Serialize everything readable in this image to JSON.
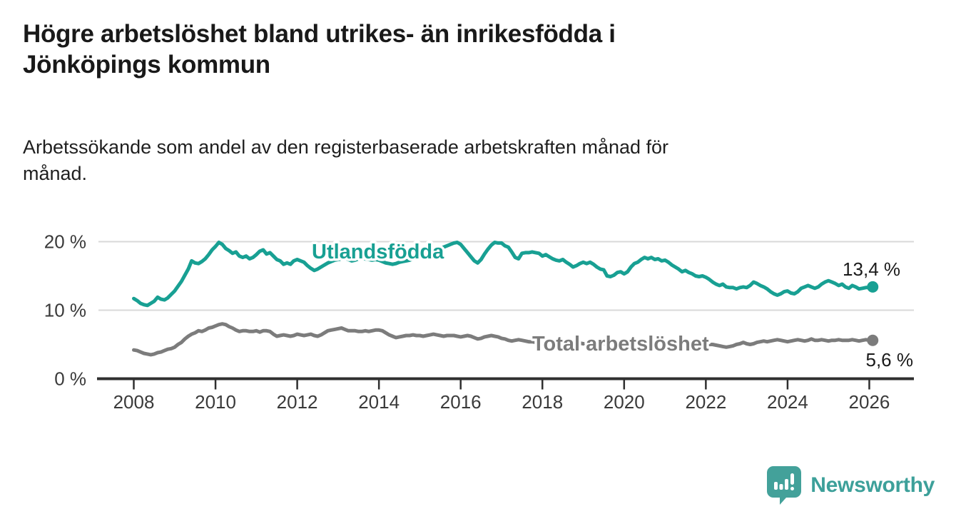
{
  "title": {
    "lines": [
      "Högre arbetslöshet bland utrikes- än inrikesfödda i",
      "Jönköpings kommun"
    ]
  },
  "subtitle": {
    "lines": [
      "Arbetssökande som andel av den registerbaserade arbetskraften månad för",
      "månad."
    ]
  },
  "chart_data": {
    "type": "line",
    "x_start": {
      "year": 2008,
      "month": 1
    },
    "x_end": {
      "year": 2026,
      "month": 2
    },
    "x_ticks": [
      2008,
      2010,
      2012,
      2014,
      2016,
      2018,
      2020,
      2022,
      2024,
      2026
    ],
    "x_tick_labels": [
      "2008",
      "2010",
      "2012",
      "2014",
      "2016",
      "2018",
      "2020",
      "2022",
      "2024",
      "2026"
    ],
    "y_ticks": [
      {
        "value": 0,
        "label": "0 %"
      },
      {
        "value": 10,
        "label": "10 %"
      },
      {
        "value": 20,
        "label": "20 %"
      }
    ],
    "ylim": [
      0,
      22
    ],
    "grid": "horizontal",
    "series": [
      {
        "name": "Utlandsfödda",
        "color": "#18a093",
        "end_value": 13.4,
        "end_label": "13,4 %",
        "values": [
          11.7,
          11.4,
          11.0,
          10.8,
          10.7,
          11.0,
          11.3,
          11.9,
          11.6,
          11.5,
          11.8,
          12.3,
          12.8,
          13.5,
          14.2,
          15.1,
          16.0,
          17.2,
          16.9,
          16.8,
          17.1,
          17.5,
          18.1,
          18.8,
          19.3,
          19.9,
          19.6,
          19.0,
          18.7,
          18.3,
          18.5,
          17.9,
          17.7,
          17.9,
          17.5,
          17.7,
          18.1,
          18.6,
          18.8,
          18.2,
          18.4,
          17.9,
          17.4,
          17.2,
          16.7,
          16.9,
          16.7,
          17.2,
          17.4,
          17.2,
          17.0,
          16.5,
          16.1,
          15.8,
          16.0,
          16.3,
          16.6,
          16.9,
          17.1,
          17.3,
          17.4,
          17.5,
          17.6,
          17.4,
          17.2,
          17.3,
          17.5,
          17.6,
          17.5,
          17.4,
          17.3,
          17.4,
          17.3,
          17.1,
          16.9,
          16.8,
          16.7,
          16.8,
          17.0,
          17.1,
          17.2,
          17.3,
          17.5,
          17.7,
          17.9,
          18.1,
          18.3,
          18.5,
          18.6,
          18.8,
          19.0,
          19.2,
          19.4,
          19.6,
          19.8,
          19.9,
          19.6,
          19.0,
          18.4,
          17.8,
          17.2,
          16.9,
          17.4,
          18.2,
          18.9,
          19.5,
          19.9,
          19.8,
          19.8,
          19.4,
          19.2,
          18.5,
          17.7,
          17.5,
          18.3,
          18.4,
          18.4,
          18.5,
          18.4,
          18.3,
          17.9,
          18.1,
          17.8,
          17.5,
          17.3,
          17.2,
          17.4,
          17.0,
          16.7,
          16.3,
          16.5,
          16.8,
          17.0,
          16.8,
          17.0,
          16.7,
          16.3,
          16.0,
          15.9,
          15.0,
          14.9,
          15.1,
          15.5,
          15.6,
          15.3,
          15.6,
          16.3,
          16.8,
          17.0,
          17.4,
          17.7,
          17.5,
          17.7,
          17.4,
          17.5,
          17.2,
          17.3,
          17.0,
          16.6,
          16.3,
          16.0,
          15.6,
          15.8,
          15.5,
          15.3,
          15.0,
          14.9,
          15.0,
          14.8,
          14.5,
          14.1,
          13.8,
          13.6,
          13.8,
          13.4,
          13.3,
          13.3,
          13.1,
          13.3,
          13.4,
          13.3,
          13.6,
          14.1,
          13.9,
          13.6,
          13.4,
          13.1,
          12.7,
          12.4,
          12.2,
          12.4,
          12.7,
          12.8,
          12.5,
          12.4,
          12.7,
          13.2,
          13.4,
          13.6,
          13.4,
          13.2,
          13.4,
          13.8,
          14.1,
          14.3,
          14.1,
          13.9,
          13.6,
          13.8,
          13.4,
          13.2,
          13.6,
          13.4,
          13.1,
          13.2,
          13.3,
          13.3,
          13.4
        ]
      },
      {
        "name": "Total arbetslöshet",
        "color": "#7c7c7c",
        "end_value": 5.6,
        "end_label": "5,6 %",
        "values": [
          4.2,
          4.1,
          3.9,
          3.7,
          3.6,
          3.5,
          3.6,
          3.8,
          3.9,
          4.1,
          4.3,
          4.4,
          4.6,
          5.0,
          5.3,
          5.8,
          6.2,
          6.5,
          6.7,
          7.0,
          6.9,
          7.1,
          7.4,
          7.5,
          7.7,
          7.9,
          8.0,
          7.9,
          7.6,
          7.4,
          7.1,
          6.9,
          7.0,
          7.0,
          6.9,
          6.9,
          7.0,
          6.8,
          7.0,
          7.0,
          6.9,
          6.5,
          6.2,
          6.3,
          6.4,
          6.3,
          6.2,
          6.3,
          6.5,
          6.4,
          6.3,
          6.4,
          6.5,
          6.3,
          6.2,
          6.4,
          6.7,
          7.0,
          7.1,
          7.2,
          7.3,
          7.4,
          7.2,
          7.0,
          7.0,
          7.0,
          6.9,
          6.9,
          7.0,
          6.9,
          7.0,
          7.1,
          7.1,
          7.0,
          6.7,
          6.4,
          6.2,
          6.0,
          6.1,
          6.2,
          6.3,
          6.3,
          6.4,
          6.3,
          6.3,
          6.2,
          6.3,
          6.4,
          6.5,
          6.4,
          6.3,
          6.2,
          6.3,
          6.3,
          6.3,
          6.2,
          6.1,
          6.2,
          6.3,
          6.2,
          6.0,
          5.8,
          5.9,
          6.1,
          6.2,
          6.3,
          6.2,
          6.1,
          5.9,
          5.8,
          5.6,
          5.5,
          5.6,
          5.7,
          5.6,
          5.5,
          5.4,
          5.4,
          5.3,
          5.3,
          5.3,
          5.3,
          5.2,
          5.2,
          5.2,
          5.1,
          5.1,
          5.2,
          5.1,
          5.1,
          5.1,
          5.2,
          5.1,
          5.1,
          5.0,
          5.0,
          5.1,
          5.1,
          5.1,
          5.0,
          5.1,
          5.1,
          5.2,
          5.2,
          5.3,
          5.3,
          5.4,
          5.5,
          5.6,
          5.6,
          5.6,
          5.5,
          5.5,
          5.4,
          5.4,
          5.3,
          5.3,
          5.2,
          5.2,
          5.1,
          5.1,
          5.0,
          5.0,
          4.9,
          4.9,
          4.9,
          5.0,
          5.0,
          5.0,
          5.0,
          5.0,
          4.9,
          4.8,
          4.7,
          4.6,
          4.7,
          4.8,
          5.0,
          5.1,
          5.3,
          5.1,
          5.0,
          5.1,
          5.3,
          5.4,
          5.5,
          5.4,
          5.5,
          5.6,
          5.7,
          5.6,
          5.5,
          5.4,
          5.5,
          5.6,
          5.7,
          5.6,
          5.5,
          5.6,
          5.8,
          5.6,
          5.6,
          5.7,
          5.6,
          5.5,
          5.6,
          5.6,
          5.7,
          5.6,
          5.6,
          5.6,
          5.7,
          5.6,
          5.5,
          5.6,
          5.7,
          5.6,
          5.6
        ]
      }
    ]
  },
  "branding": {
    "logo_text": "Newsworthy",
    "logo_icon": "speech-bubble-bar-chart-icon",
    "logo_color": "#43a19a"
  },
  "colors": {
    "accent_teal": "#18a093",
    "series_gray": "#7c7c7c",
    "gridline": "#d9d9d9",
    "axis": "#2f2f2f",
    "text": "#1a1a1a"
  }
}
